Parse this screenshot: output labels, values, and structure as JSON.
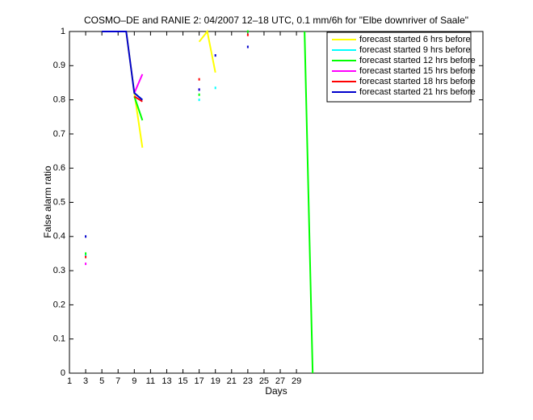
{
  "chart_data": {
    "type": "line",
    "title": "COSMO–DE and RANIE 2: 04/2007 12–18 UTC, 0.1 mm/6h for \"Elbe downriver of Saale\"",
    "x_label": "Days",
    "y_label": "False alarm ratio",
    "x": [
      1,
      2,
      3,
      4,
      5,
      6,
      7,
      8,
      9,
      10,
      11,
      12,
      13,
      14,
      15,
      16,
      17,
      18,
      19,
      20,
      21,
      22,
      23,
      24,
      25,
      26,
      27,
      28,
      29,
      30,
      31
    ],
    "xlim": [
      1,
      52
    ],
    "xticks": [
      1,
      3,
      5,
      7,
      9,
      11,
      13,
      15,
      17,
      19,
      21,
      23,
      25,
      27,
      29
    ],
    "ylim": [
      0,
      1
    ],
    "yticks": [
      0,
      0.1,
      0.2,
      0.3,
      0.4,
      0.5,
      0.6,
      0.7,
      0.8,
      0.9,
      1
    ],
    "legend": "upper right",
    "series": [
      {
        "name": "forecast started 6 hrs before",
        "color": "#ffff00",
        "values": [
          null,
          null,
          null,
          null,
          null,
          1,
          1,
          1,
          0.82,
          0.66,
          null,
          null,
          null,
          null,
          null,
          null,
          0.97,
          1,
          0.88,
          null,
          null,
          null,
          null,
          null,
          null,
          null,
          null,
          null,
          null,
          null,
          null
        ]
      },
      {
        "name": "forecast started 9 hrs before",
        "color": "#00ffff",
        "values": [
          null,
          null,
          0.345,
          null,
          null,
          null,
          null,
          null,
          0.82,
          0.8,
          null,
          null,
          null,
          null,
          null,
          null,
          0.8,
          null,
          0.835,
          null,
          null,
          null,
          null,
          null,
          null,
          null,
          null,
          null,
          null,
          null,
          null
        ]
      },
      {
        "name": "forecast started 12 hrs before",
        "color": "#00ff00",
        "values": [
          null,
          null,
          0.35,
          null,
          null,
          null,
          null,
          null,
          0.81,
          0.74,
          null,
          null,
          null,
          null,
          null,
          null,
          0.815,
          null,
          null,
          null,
          null,
          null,
          1,
          null,
          null,
          null,
          null,
          null,
          null,
          1,
          0
        ]
      },
      {
        "name": "forecast started 15 hrs before",
        "color": "#ff00ff",
        "values": [
          null,
          null,
          0.32,
          null,
          null,
          null,
          null,
          null,
          0.82,
          0.875,
          null,
          null,
          null,
          null,
          null,
          null,
          0.83,
          null,
          null,
          null,
          null,
          null,
          null,
          null,
          null,
          null,
          null,
          null,
          null,
          null,
          null
        ]
      },
      {
        "name": "forecast started 18 hrs before",
        "color": "#ff0000",
        "values": [
          null,
          null,
          0.34,
          null,
          null,
          null,
          null,
          null,
          0.81,
          0.795,
          null,
          null,
          null,
          null,
          null,
          null,
          0.86,
          null,
          null,
          null,
          null,
          null,
          0.99,
          null,
          null,
          null,
          null,
          null,
          null,
          null,
          null
        ]
      },
      {
        "name": "forecast started 21 hrs before",
        "color": "#0000cc",
        "values": [
          null,
          null,
          0.4,
          null,
          1,
          1,
          1,
          1,
          0.82,
          0.8,
          null,
          null,
          null,
          null,
          null,
          null,
          0.83,
          null,
          0.93,
          null,
          null,
          null,
          0.955,
          null,
          null,
          null,
          null,
          null,
          null,
          null,
          null
        ]
      }
    ]
  }
}
